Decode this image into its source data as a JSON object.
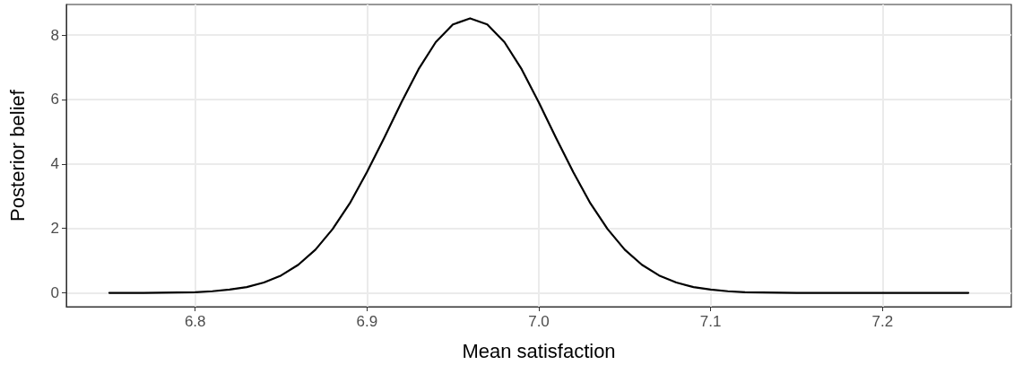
{
  "chart_data": {
    "type": "line",
    "xlabel": "Mean satisfaction",
    "ylabel": "Posterior belief",
    "series": [
      {
        "color": "#000000",
        "x": [
          6.75,
          6.77,
          6.79,
          6.8,
          6.81,
          6.82,
          6.83,
          6.84,
          6.85,
          6.86,
          6.87,
          6.88,
          6.89,
          6.9,
          6.91,
          6.92,
          6.93,
          6.94,
          6.95,
          6.96,
          6.97,
          6.98,
          6.99,
          7.0,
          7.01,
          7.02,
          7.03,
          7.04,
          7.05,
          7.06,
          7.07,
          7.08,
          7.09,
          7.1,
          7.11,
          7.12,
          7.13,
          7.15,
          7.18,
          7.21,
          7.25
        ],
        "values": [
          0,
          0,
          0.01,
          0.02,
          0.05,
          0.1,
          0.18,
          0.32,
          0.54,
          0.87,
          1.34,
          1.98,
          2.78,
          3.75,
          4.81,
          5.91,
          6.94,
          7.78,
          8.33,
          8.52,
          8.33,
          7.78,
          6.94,
          5.91,
          4.81,
          3.75,
          2.78,
          1.98,
          1.34,
          0.87,
          0.54,
          0.32,
          0.18,
          0.1,
          0.05,
          0.02,
          0.01,
          0,
          0,
          0,
          0
        ]
      }
    ],
    "xlim": [
      6.725,
      7.275
    ],
    "xticks": [
      6.8,
      6.9,
      {
        "value": 7,
        "label": "7.0"
      },
      7.1,
      7.2
    ],
    "ylim": [
      -0.43,
      8.95
    ],
    "yticks": [
      0,
      2,
      4,
      6,
      8
    ],
    "grid": true,
    "marker": "none",
    "line_style": "solid"
  }
}
